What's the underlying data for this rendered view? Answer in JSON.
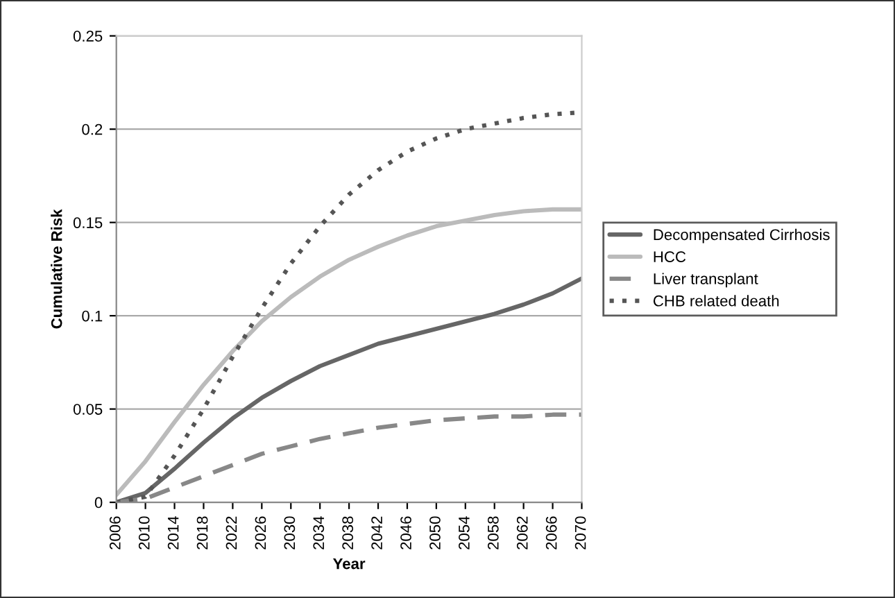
{
  "chart_data": {
    "type": "line",
    "xlabel": "Year",
    "ylabel": "Cumulative Risk",
    "x": [
      2006,
      2010,
      2014,
      2018,
      2022,
      2026,
      2030,
      2034,
      2038,
      2042,
      2046,
      2050,
      2054,
      2058,
      2062,
      2066,
      2070
    ],
    "series": [
      {
        "name": "Decompensated Cirrhosis",
        "color": "#666666",
        "line_style": "solid",
        "values": [
          0,
          0.005,
          0.018,
          0.032,
          0.045,
          0.056,
          0.065,
          0.073,
          0.079,
          0.085,
          0.089,
          0.093,
          0.097,
          0.101,
          0.106,
          0.112,
          0.12
        ]
      },
      {
        "name": "HCC",
        "color": "#bbbbbb",
        "line_style": "solid",
        "values": [
          0.004,
          0.022,
          0.043,
          0.063,
          0.081,
          0.097,
          0.11,
          0.121,
          0.13,
          0.137,
          0.143,
          0.148,
          0.151,
          0.154,
          0.156,
          0.157,
          0.157
        ]
      },
      {
        "name": "Liver transplant",
        "color": "#888888",
        "line_style": "dashed",
        "values": [
          0,
          0.002,
          0.008,
          0.014,
          0.02,
          0.026,
          0.03,
          0.034,
          0.037,
          0.04,
          0.042,
          0.044,
          0.045,
          0.046,
          0.046,
          0.047,
          0.047
        ]
      },
      {
        "name": "CHB related death",
        "color": "#555555",
        "line_style": "dotted",
        "values": [
          0,
          0.003,
          0.025,
          0.05,
          0.078,
          0.104,
          0.128,
          0.148,
          0.165,
          0.178,
          0.188,
          0.195,
          0.2,
          0.203,
          0.206,
          0.208,
          0.209
        ]
      }
    ],
    "xlim": [
      2006,
      2070
    ],
    "xticks": [
      2006,
      2010,
      2014,
      2018,
      2022,
      2026,
      2030,
      2034,
      2038,
      2042,
      2046,
      2050,
      2054,
      2058,
      2062,
      2066,
      2070
    ],
    "ylim": [
      0,
      0.25
    ],
    "yticks": [
      0,
      0.05,
      0.1,
      0.15,
      0.2,
      0.25
    ],
    "grid": "y",
    "legend": "right",
    "marker": "none"
  }
}
